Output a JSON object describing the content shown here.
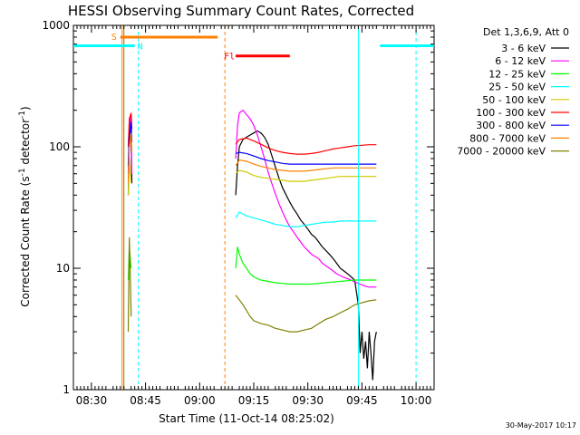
{
  "chart_data": {
    "type": "line",
    "title": "HESSI Observing Summary Count Rates, Corrected",
    "xlabel": "Start Time (11-Oct-14 08:25:02)",
    "ylabel_main": "Corrected Count Rate (s",
    "ylabel_sup1": "-1",
    "ylabel_mid": " detector",
    "ylabel_sup2": "-1",
    "ylabel_end": ")",
    "footer": "30-May-2017 10:17",
    "legend_header": "Det 1,3,6,9, Att 0",
    "xlim": [
      0,
      100
    ],
    "ylim": [
      1,
      1000
    ],
    "yscale": "log",
    "x_ticks": [
      {
        "x": 5,
        "label": "08:30"
      },
      {
        "x": 20,
        "label": "08:45"
      },
      {
        "x": 35,
        "label": "09:00"
      },
      {
        "x": 50,
        "label": "09:15"
      },
      {
        "x": 65,
        "label": "09:30"
      },
      {
        "x": 80,
        "label": "09:45"
      },
      {
        "x": 95,
        "label": "10:00"
      }
    ],
    "y_ticks": [
      {
        "y": 1,
        "label": "1"
      },
      {
        "y": 10,
        "label": "10"
      },
      {
        "y": 100,
        "label": "100"
      },
      {
        "y": 1000,
        "label": "1000"
      }
    ],
    "series": [
      {
        "name": "3 - 6 keV",
        "color": "#000000",
        "points": [
          [
            15.2,
            40
          ],
          [
            15.5,
            110
          ],
          [
            15.8,
            170
          ],
          [
            16,
            120
          ],
          [
            16.2,
            50
          ],
          [
            null,
            null
          ],
          [
            45,
            40
          ],
          [
            45.5,
            70
          ],
          [
            46,
            100
          ],
          [
            47,
            115
          ],
          [
            48,
            120
          ],
          [
            49,
            125
          ],
          [
            50,
            130
          ],
          [
            51,
            135
          ],
          [
            52,
            130
          ],
          [
            53,
            120
          ],
          [
            54,
            105
          ],
          [
            55,
            85
          ],
          [
            56,
            68
          ],
          [
            57,
            55
          ],
          [
            58,
            46
          ],
          [
            59,
            40
          ],
          [
            60,
            35
          ],
          [
            61,
            31
          ],
          [
            62,
            28
          ],
          [
            63,
            25
          ],
          [
            64,
            23
          ],
          [
            65,
            21
          ],
          [
            66,
            19
          ],
          [
            67,
            18
          ],
          [
            68,
            16.5
          ],
          [
            69,
            15
          ],
          [
            70,
            14
          ],
          [
            71,
            13
          ],
          [
            72,
            12
          ],
          [
            73,
            11
          ],
          [
            74,
            10
          ],
          [
            75,
            9.5
          ],
          [
            76,
            9
          ],
          [
            77,
            8.5
          ],
          [
            78,
            8
          ],
          [
            79,
            5
          ],
          [
            79.5,
            2
          ],
          [
            80,
            3
          ],
          [
            80.5,
            1.8
          ],
          [
            81,
            2.5
          ],
          [
            81.5,
            1.5
          ],
          [
            82,
            3
          ],
          [
            82.5,
            2
          ],
          [
            83,
            1.2
          ],
          [
            83.5,
            2.5
          ],
          [
            84,
            3
          ]
        ]
      },
      {
        "name": "6 - 12 keV",
        "color": "#ff00ff",
        "points": [
          [
            15.2,
            60
          ],
          [
            15.5,
            140
          ],
          [
            15.8,
            180
          ],
          [
            16,
            140
          ],
          [
            16.2,
            60
          ],
          [
            null,
            null
          ],
          [
            45,
            80
          ],
          [
            45.5,
            150
          ],
          [
            46,
            190
          ],
          [
            47,
            200
          ],
          [
            48,
            185
          ],
          [
            49,
            170
          ],
          [
            50,
            150
          ],
          [
            51,
            125
          ],
          [
            52,
            100
          ],
          [
            53,
            80
          ],
          [
            54,
            62
          ],
          [
            55,
            50
          ],
          [
            56,
            41
          ],
          [
            57,
            34
          ],
          [
            58,
            29
          ],
          [
            59,
            25
          ],
          [
            60,
            22
          ],
          [
            61,
            20
          ],
          [
            62,
            18
          ],
          [
            63,
            16.5
          ],
          [
            64,
            15
          ],
          [
            65,
            14
          ],
          [
            66,
            13
          ],
          [
            67,
            12.5
          ],
          [
            68,
            12
          ],
          [
            69,
            11
          ],
          [
            70,
            10.5
          ],
          [
            71,
            10
          ],
          [
            72,
            9.5
          ],
          [
            73,
            9
          ],
          [
            74,
            8.7
          ],
          [
            75,
            8.4
          ],
          [
            76,
            8.2
          ],
          [
            77,
            8
          ],
          [
            78,
            7.7
          ],
          [
            79,
            7.5
          ],
          [
            80,
            7.3
          ],
          [
            81,
            7.1
          ],
          [
            82,
            7
          ],
          [
            83,
            7
          ],
          [
            84,
            7
          ]
        ]
      },
      {
        "name": "12 - 25 keV",
        "color": "#00ff00",
        "points": [
          [
            15.2,
            8
          ],
          [
            15.5,
            15
          ],
          [
            16,
            10
          ],
          [
            null,
            null
          ],
          [
            45,
            10
          ],
          [
            45.5,
            15
          ],
          [
            46,
            13
          ],
          [
            47,
            11
          ],
          [
            48,
            10
          ],
          [
            49,
            9
          ],
          [
            50,
            8.5
          ],
          [
            52,
            8
          ],
          [
            54,
            7.8
          ],
          [
            56,
            7.6
          ],
          [
            58,
            7.5
          ],
          [
            60,
            7.4
          ],
          [
            62,
            7.4
          ],
          [
            64,
            7.4
          ],
          [
            66,
            7.4
          ],
          [
            68,
            7.5
          ],
          [
            70,
            7.6
          ],
          [
            72,
            7.7
          ],
          [
            74,
            7.8
          ],
          [
            76,
            7.9
          ],
          [
            78,
            8
          ],
          [
            80,
            8
          ],
          [
            82,
            8
          ],
          [
            84,
            8
          ]
        ]
      },
      {
        "name": "25 - 50 keV",
        "color": "#00ffff",
        "points": [
          [
            45,
            26
          ],
          [
            46,
            29
          ],
          [
            47,
            28
          ],
          [
            48,
            27
          ],
          [
            50,
            26
          ],
          [
            52,
            25
          ],
          [
            54,
            24
          ],
          [
            56,
            23
          ],
          [
            58,
            22.5
          ],
          [
            60,
            22
          ],
          [
            62,
            22
          ],
          [
            64,
            22.5
          ],
          [
            66,
            23
          ],
          [
            68,
            23.5
          ],
          [
            70,
            24
          ],
          [
            72,
            24
          ],
          [
            74,
            24.5
          ],
          [
            76,
            24.5
          ],
          [
            78,
            24.5
          ],
          [
            80,
            24.5
          ],
          [
            82,
            24.5
          ],
          [
            84,
            24.5
          ]
        ]
      },
      {
        "name": "50 - 100 keV",
        "color": "#cccc00",
        "points": [
          [
            15.2,
            40
          ],
          [
            15.5,
            80
          ],
          [
            16,
            50
          ],
          [
            null,
            null
          ],
          [
            45,
            60
          ],
          [
            46,
            64
          ],
          [
            48,
            62
          ],
          [
            50,
            58
          ],
          [
            52,
            56
          ],
          [
            54,
            55
          ],
          [
            56,
            54
          ],
          [
            58,
            53
          ],
          [
            60,
            52
          ],
          [
            62,
            52
          ],
          [
            64,
            52
          ],
          [
            66,
            53
          ],
          [
            68,
            54
          ],
          [
            70,
            55
          ],
          [
            72,
            56
          ],
          [
            74,
            57
          ],
          [
            76,
            57
          ],
          [
            78,
            57
          ],
          [
            80,
            57
          ],
          [
            82,
            57
          ],
          [
            84,
            57
          ]
        ]
      },
      {
        "name": "100 - 300 keV",
        "color": "#ff0000",
        "points": [
          [
            15.2,
            100
          ],
          [
            15.5,
            170
          ],
          [
            16,
            190
          ],
          [
            16.2,
            140
          ],
          [
            null,
            null
          ],
          [
            45,
            105
          ],
          [
            46,
            115
          ],
          [
            48,
            118
          ],
          [
            50,
            112
          ],
          [
            52,
            105
          ],
          [
            54,
            98
          ],
          [
            56,
            93
          ],
          [
            58,
            90
          ],
          [
            60,
            88
          ],
          [
            62,
            87
          ],
          [
            64,
            87
          ],
          [
            66,
            88
          ],
          [
            68,
            90
          ],
          [
            70,
            93
          ],
          [
            72,
            96
          ],
          [
            74,
            98
          ],
          [
            76,
            100
          ],
          [
            78,
            102
          ],
          [
            80,
            103
          ],
          [
            82,
            104
          ],
          [
            84,
            104
          ]
        ]
      },
      {
        "name": "300 - 800 keV",
        "color": "#0000ff",
        "points": [
          [
            15.2,
            70
          ],
          [
            15.5,
            120
          ],
          [
            16,
            160
          ],
          [
            16.2,
            110
          ],
          [
            null,
            null
          ],
          [
            45,
            88
          ],
          [
            46,
            90
          ],
          [
            48,
            88
          ],
          [
            50,
            84
          ],
          [
            52,
            80
          ],
          [
            54,
            77
          ],
          [
            56,
            75
          ],
          [
            58,
            73
          ],
          [
            60,
            72
          ],
          [
            62,
            72
          ],
          [
            64,
            72
          ],
          [
            66,
            72
          ],
          [
            68,
            72
          ],
          [
            70,
            72
          ],
          [
            72,
            72
          ],
          [
            74,
            72
          ],
          [
            76,
            72
          ],
          [
            78,
            72
          ],
          [
            80,
            72
          ],
          [
            82,
            72
          ],
          [
            84,
            72
          ]
        ]
      },
      {
        "name": "800 - 7000 keV",
        "color": "#ff8000",
        "points": [
          [
            15.2,
            50
          ],
          [
            15.5,
            100
          ],
          [
            16,
            130
          ],
          [
            16.2,
            90
          ],
          [
            null,
            null
          ],
          [
            45,
            70
          ],
          [
            46,
            78
          ],
          [
            48,
            76
          ],
          [
            50,
            72
          ],
          [
            52,
            69
          ],
          [
            54,
            67
          ],
          [
            56,
            65
          ],
          [
            58,
            64
          ],
          [
            60,
            63
          ],
          [
            62,
            63
          ],
          [
            64,
            63
          ],
          [
            66,
            64
          ],
          [
            68,
            65
          ],
          [
            70,
            66
          ],
          [
            72,
            67
          ],
          [
            74,
            67
          ],
          [
            76,
            67
          ],
          [
            78,
            67
          ],
          [
            80,
            67
          ],
          [
            82,
            67
          ],
          [
            84,
            67
          ]
        ]
      },
      {
        "name": "7000 - 20000 keV",
        "color": "#808000",
        "points": [
          [
            15.2,
            3
          ],
          [
            15.5,
            18
          ],
          [
            15.8,
            8
          ],
          [
            16,
            4
          ],
          [
            null,
            null
          ],
          [
            45,
            6
          ],
          [
            46,
            5.5
          ],
          [
            47,
            5
          ],
          [
            48,
            4.5
          ],
          [
            49,
            4
          ],
          [
            50,
            3.7
          ],
          [
            52,
            3.5
          ],
          [
            54,
            3.4
          ],
          [
            56,
            3.2
          ],
          [
            58,
            3.1
          ],
          [
            60,
            3
          ],
          [
            62,
            3
          ],
          [
            64,
            3.1
          ],
          [
            66,
            3.2
          ],
          [
            68,
            3.5
          ],
          [
            70,
            3.8
          ],
          [
            72,
            4
          ],
          [
            74,
            4.3
          ],
          [
            76,
            4.6
          ],
          [
            78,
            5
          ],
          [
            80,
            5.2
          ],
          [
            82,
            5.4
          ],
          [
            84,
            5.5
          ]
        ]
      }
    ],
    "flags": {
      "saa": {
        "label": "S",
        "color": "#ff8000",
        "x": [
          13,
          40
        ],
        "y": 800
      },
      "night": {
        "label": "N",
        "color": "#00ffff",
        "segments": [
          [
            0,
            17
          ],
          [
            85,
            100
          ]
        ],
        "y": 680
      },
      "flare": {
        "label": "Fl",
        "color": "#ff0000",
        "x": [
          45,
          60
        ],
        "y": 560
      }
    },
    "vlines": [
      {
        "x": 13.5,
        "color": "#ff8000",
        "style": "solid"
      },
      {
        "x": 14,
        "color": "#808000",
        "style": "solid"
      },
      {
        "x": 18,
        "color": "#00ffff",
        "style": "dashed"
      },
      {
        "x": 42,
        "color": "#ff8000",
        "style": "dashed"
      },
      {
        "x": 79,
        "color": "#00ffff",
        "style": "solid"
      },
      {
        "x": 95,
        "color": "#00ffff",
        "style": "dashed"
      }
    ]
  }
}
